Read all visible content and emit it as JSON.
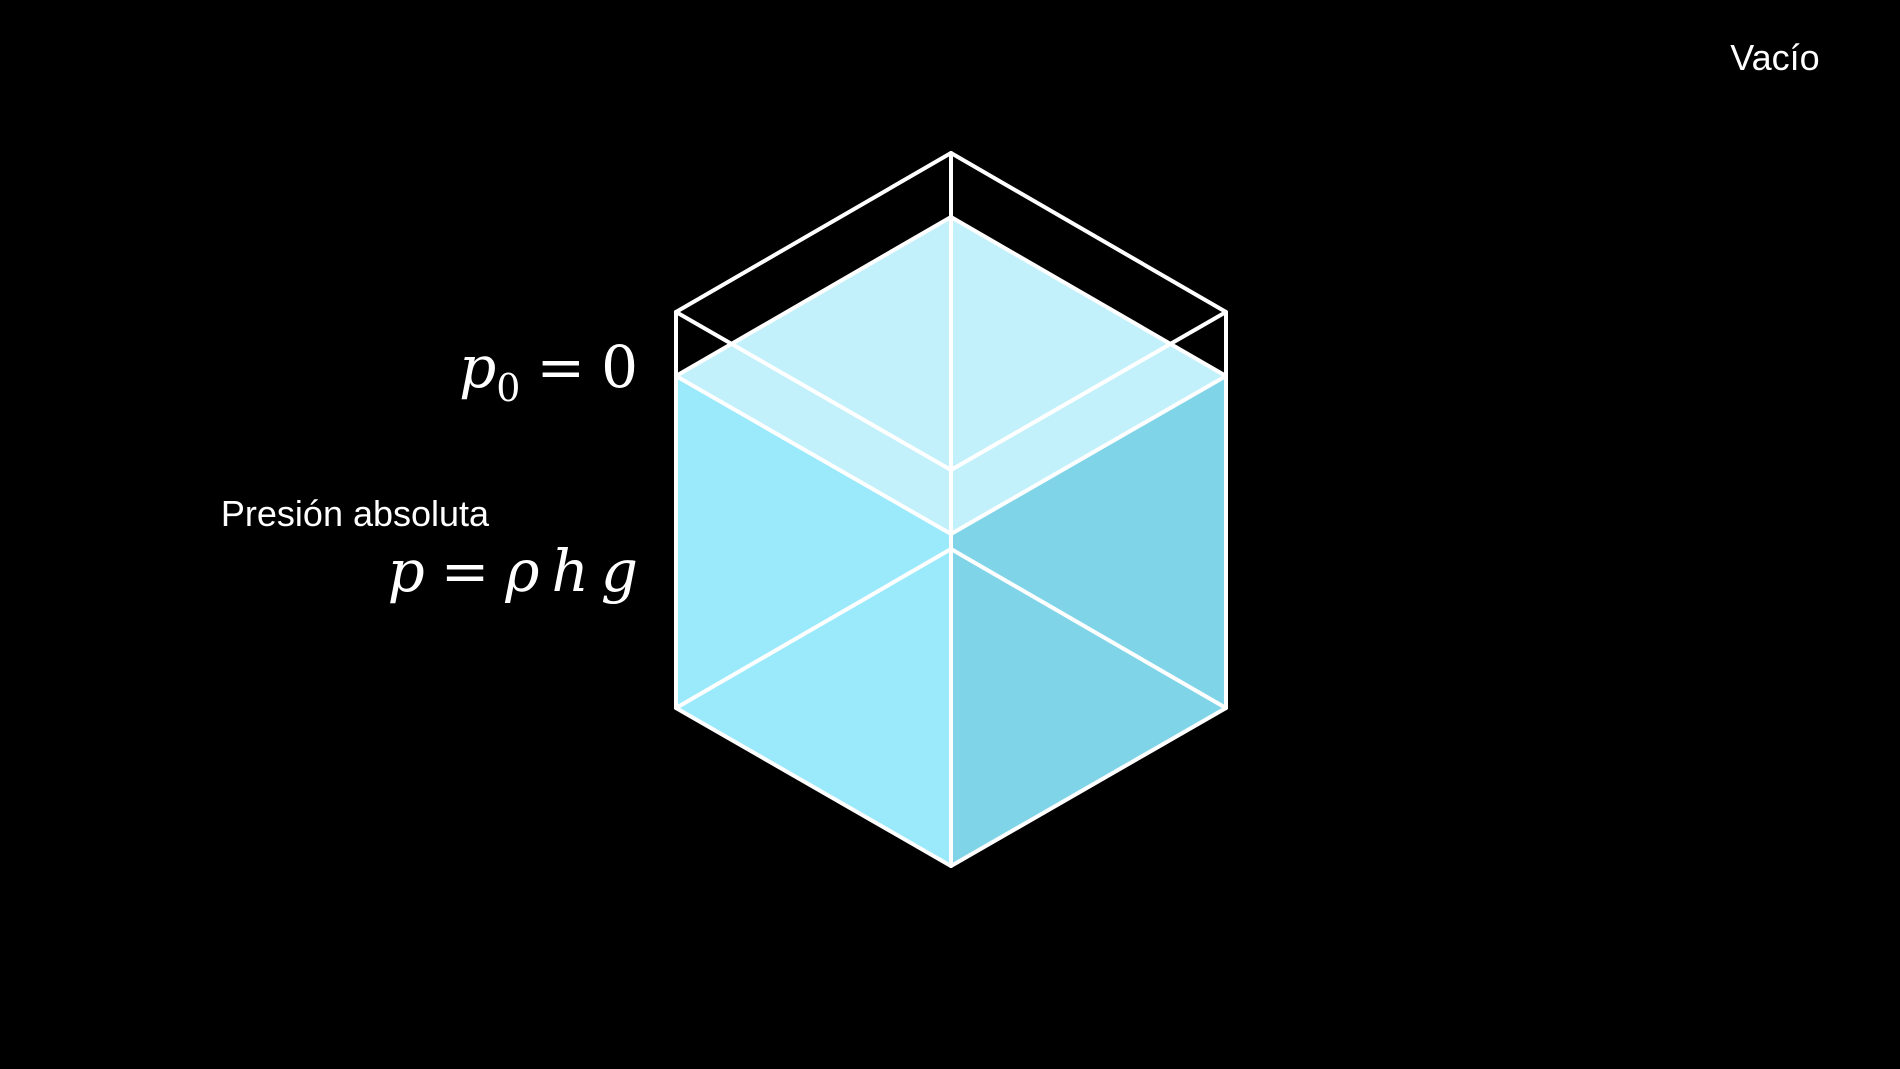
{
  "labels": {
    "vacuum": "Vacío",
    "absolute_pressure": "Presión absoluta"
  },
  "equations": {
    "surface": {
      "symbol": "p",
      "subscript": "0",
      "operator": "=",
      "value": "0"
    },
    "absolute": {
      "lhs": "p",
      "operator": "=",
      "rho": "ρ",
      "h": "h",
      "g": "g"
    }
  },
  "colors": {
    "background": "#000000",
    "outline": "#ffffff",
    "water_top": "#c3f1fb",
    "water_left": "#9aeafc",
    "water_right": "#80d4e8"
  }
}
